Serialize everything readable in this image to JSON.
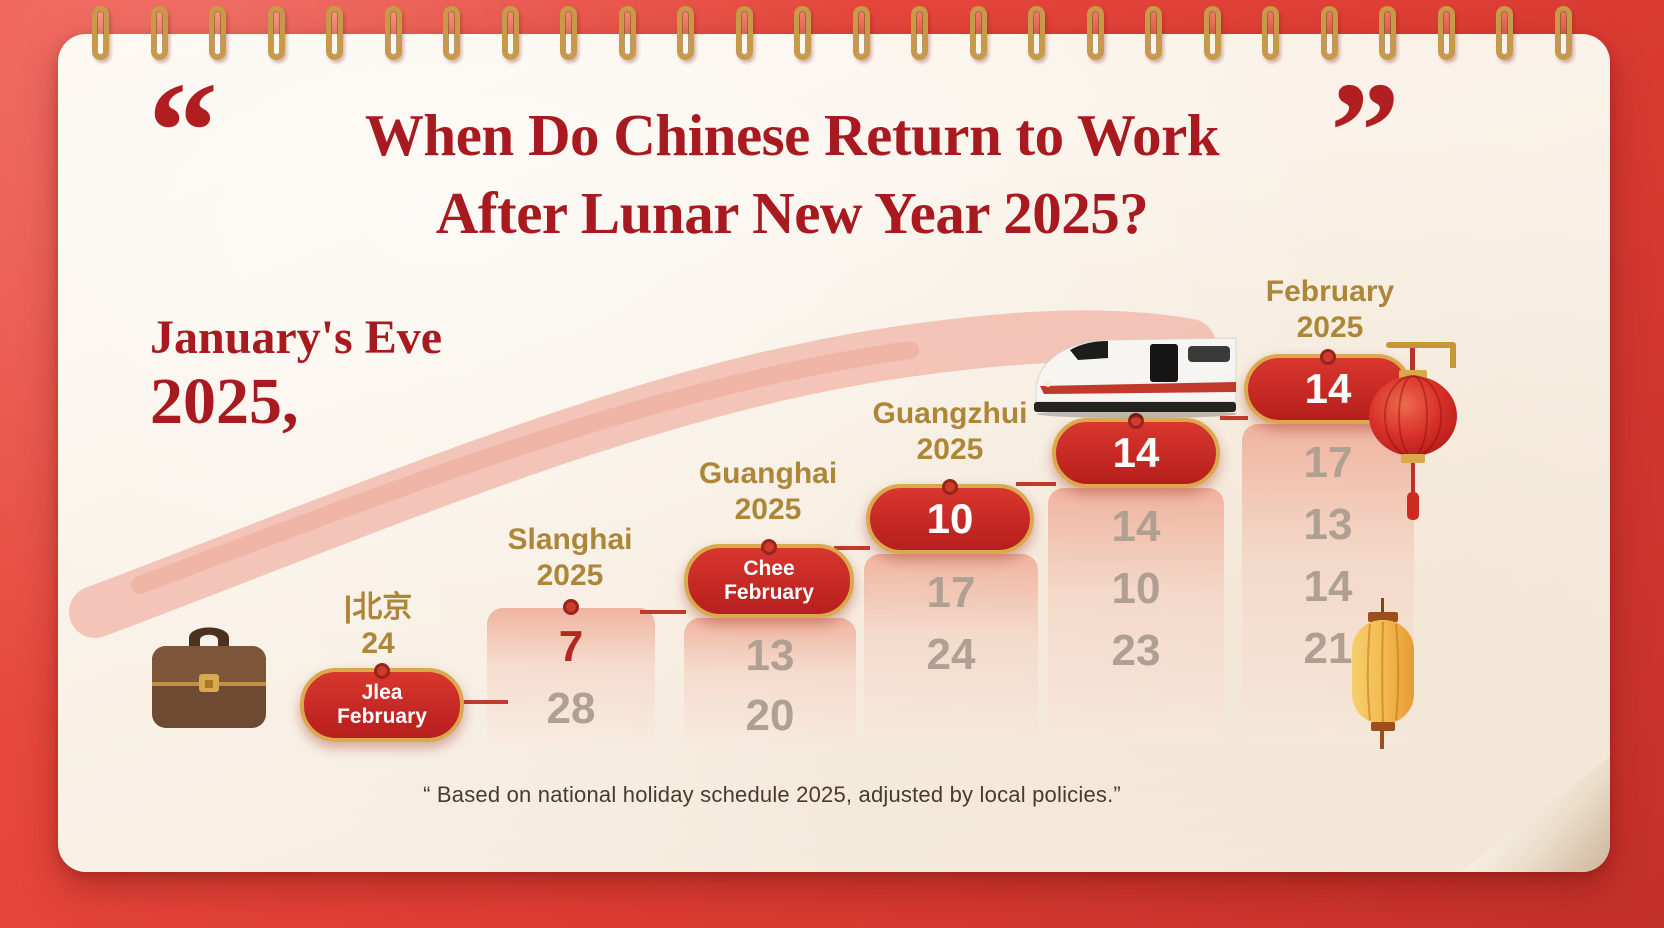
{
  "header": {
    "open_quote": "“",
    "close_quote": "”",
    "title_line1": "When Do Chinese Return to Work",
    "title_line2": "After Lunar New Year 2025?"
  },
  "intro": {
    "line1": "January's Eve",
    "line2": "2025,"
  },
  "columns": [
    {
      "label_line1": "|北京",
      "label_line2": "24",
      "badge_line1": "Jlea",
      "badge_line2": "February",
      "cells": []
    },
    {
      "label_line1": "Slanghai",
      "label_line2": "2025",
      "cells": [
        "7",
        "28"
      ]
    },
    {
      "label_line1": "Guanghai",
      "label_line2": "2025",
      "badge_line1": "Chee",
      "badge_line2": "February",
      "cells": [
        "13",
        "20"
      ]
    },
    {
      "label_line1": "Guangzhui",
      "label_line2": "2025",
      "badge_value": "10",
      "cells": [
        "17",
        "24"
      ]
    },
    {
      "badge_value": "14",
      "cells": [
        "14",
        "10",
        "23"
      ]
    },
    {
      "label_line1": "February",
      "label_line2": "2025",
      "badge_value": "14",
      "cells": [
        "17",
        "13",
        "14",
        "21"
      ]
    }
  ],
  "footer": {
    "note": "“  Based on national holiday schedule 2025, adjusted by local policies.”"
  },
  "decor": {
    "ring_count": 26,
    "icons": [
      "spiral-binding-rings",
      "brush-stroke",
      "briefcase-icon",
      "high-speed-train-icon",
      "red-lantern-icon",
      "yellow-lantern-icon",
      "page-curl"
    ]
  },
  "colors": {
    "background_red": "#de3e34",
    "paper_cream": "#faf3ea",
    "title_red": "#a81a1f",
    "label_gold": "#ae8638",
    "badge_red": "#c4231f",
    "badge_border_gold": "#daa94e",
    "column_pink": "#eea690",
    "cell_gray": "#b0a092"
  },
  "chart_data": {
    "type": "bar",
    "title": "When Do Chinese Return to Work After Lunar New Year 2025?",
    "subtitle": "January's Eve 2025,",
    "categories": [
      "|北京 24",
      "Slanghai 2025",
      "Guanghai 2025",
      "Guangzhui 2025",
      "(unlabeled train column)",
      "February 2025"
    ],
    "badges": [
      "Jlea February",
      null,
      "Chee February",
      "10",
      "14",
      "14"
    ],
    "column_numbers": [
      [],
      [
        7,
        28
      ],
      [
        13,
        20
      ],
      [
        17,
        24
      ],
      [
        14,
        10,
        23
      ],
      [
        17,
        13,
        14,
        21
      ]
    ],
    "bar_heights_relative": [
      0.08,
      0.3,
      0.33,
      0.45,
      0.6,
      0.78
    ],
    "note": "Based on national holiday schedule 2025, adjusted by local policies.",
    "grid": false,
    "legend_position": "none"
  }
}
